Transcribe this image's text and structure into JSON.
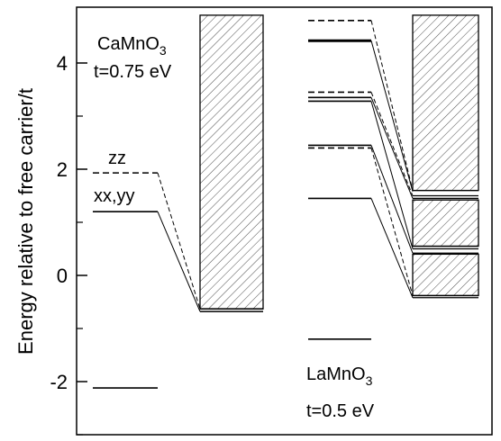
{
  "chart_data": {
    "type": "level-diagram",
    "ylabel": "Energy relative to free carrier/t",
    "ylim": [
      -2.9,
      4.9
    ],
    "yticks": [
      {
        "value": -2,
        "label": "-2"
      },
      {
        "value": 0,
        "label": "0"
      },
      {
        "value": 2,
        "label": "2"
      },
      {
        "value": 4,
        "label": "4"
      }
    ],
    "yminor_ticks": [
      -3,
      -1,
      1,
      3
    ],
    "panels": [
      {
        "id": "camno3",
        "material": "CaMnO",
        "material_sub": "3",
        "hopping": "t=0.75 eV",
        "levels": [
          {
            "energy": 1.93,
            "style": "dashed",
            "label": "zz",
            "continuum_edge": -0.63
          },
          {
            "energy": 1.2,
            "style": "solid",
            "label": "xx,yy",
            "continuum_edge": -0.68
          },
          {
            "energy": -2.12,
            "style": "solid",
            "label": ""
          }
        ],
        "continuum_bands": [
          {
            "bottom": -0.63,
            "top": 4.9
          }
        ]
      },
      {
        "id": "lamno3",
        "material": "LaMnO",
        "material_sub": "3",
        "hopping": "t=0.5 eV",
        "levels": [
          {
            "energy": 4.8,
            "style": "dashed",
            "continuum_edge": 1.6
          },
          {
            "energy": 4.42,
            "style": "solid-bold",
            "continuum_edge": 1.58
          },
          {
            "energy": 3.45,
            "style": "dashed",
            "continuum_edge": 1.5
          },
          {
            "energy": 3.35,
            "style": "solid",
            "continuum_edge": 1.45
          },
          {
            "energy": 3.28,
            "style": "solid",
            "continuum_edge": 0.5
          },
          {
            "energy": 2.45,
            "style": "solid",
            "continuum_edge": 0.42
          },
          {
            "energy": 2.4,
            "style": "dashed",
            "continuum_edge": -0.38
          },
          {
            "energy": 1.45,
            "style": "solid",
            "continuum_edge": -0.42
          },
          {
            "energy": -1.2,
            "style": "solid"
          }
        ],
        "continuum_bands": [
          {
            "bottom": 1.6,
            "top": 4.9
          },
          {
            "bottom": 0.55,
            "top": 1.42
          },
          {
            "bottom": -0.38,
            "top": 0.4
          }
        ],
        "continuum_lines": [
          1.6,
          1.5,
          1.45,
          0.55,
          0.5,
          0.42,
          0.4,
          -0.38,
          -0.42
        ]
      }
    ]
  }
}
